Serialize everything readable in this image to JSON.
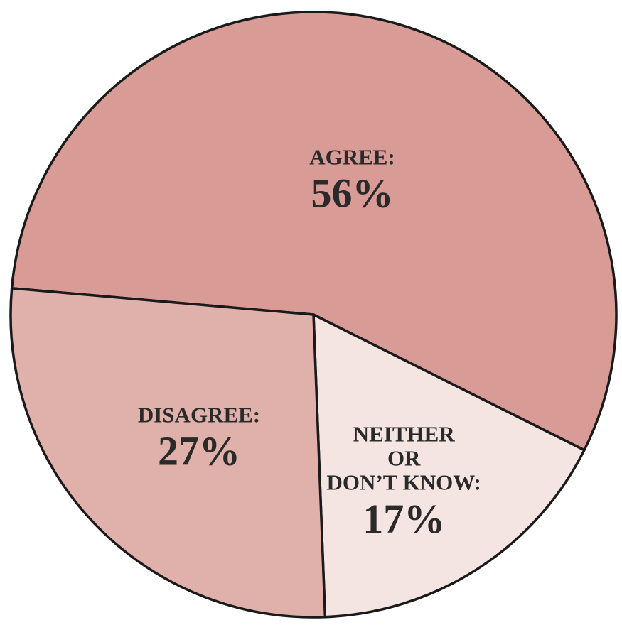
{
  "chart_data": {
    "type": "pie",
    "slices": [
      {
        "label": "AGREE:",
        "label_lines": [
          "AGREE:"
        ],
        "value": 56,
        "value_text": "56%",
        "color": "#d89b95"
      },
      {
        "label": "NEITHER OR DON'T KNOW:",
        "label_lines": [
          "NEITHER",
          "OR",
          "DON’T KNOW:"
        ],
        "value": 17,
        "value_text": "17%",
        "color": "#f4e4e2"
      },
      {
        "label": "DISAGREE:",
        "label_lines": [
          "DISAGREE:"
        ],
        "value": 27,
        "value_text": "27%",
        "color": "#e0b0aa"
      }
    ],
    "unit": "%",
    "start_angle_deg": 175,
    "direction": "clockwise",
    "legend": "none"
  }
}
